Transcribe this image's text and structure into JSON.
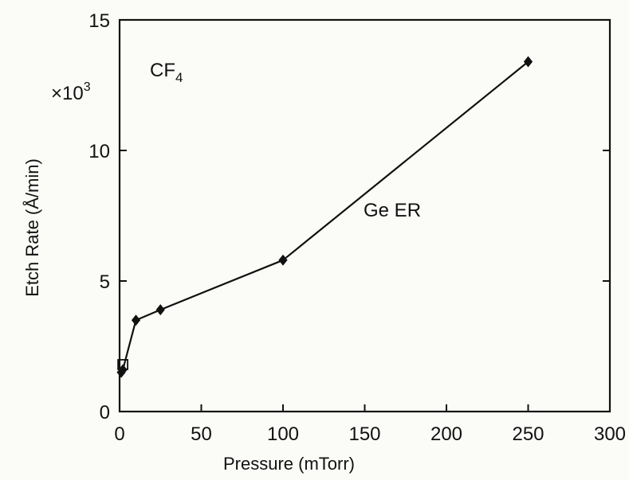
{
  "chart_data": {
    "type": "line",
    "title": "",
    "xlabel": "Pressure (mTorr)",
    "ylabel": "Etch Rate (Å/min)",
    "y_multiplier": "×10",
    "y_multiplier_exponent": "3",
    "xlim": [
      0,
      300
    ],
    "ylim": [
      0,
      15
    ],
    "x_ticks": [
      0,
      50,
      100,
      150,
      200,
      250,
      300
    ],
    "y_ticks": [
      0,
      5,
      10,
      15
    ],
    "grid": false,
    "legend": "none",
    "annotations": {
      "gas": "CF",
      "gas_subscript": "4",
      "series_label": "Ge ER"
    },
    "series": [
      {
        "name": "Ge ER",
        "marker": "diamond",
        "x": [
          1,
          2,
          10,
          25,
          100,
          250
        ],
        "y": [
          1.5,
          1.6,
          3.5,
          3.9,
          5.8,
          13.4
        ]
      }
    ],
    "open_marker": {
      "x": 2,
      "y": 1.8,
      "shape": "square"
    }
  },
  "colors": {
    "ink": "#111111",
    "background": "#fbfbf8"
  }
}
